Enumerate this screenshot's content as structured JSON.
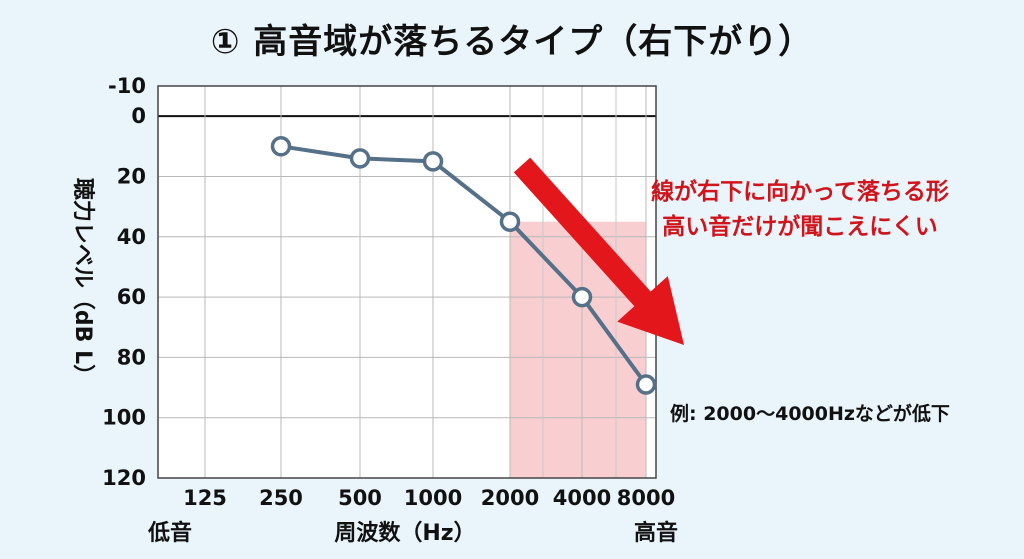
{
  "title": "① 高音域が落ちるタイプ（右下がり）",
  "chart_data": {
    "type": "line",
    "categories": [
      "125",
      "250",
      "500",
      "1000",
      "2000",
      "4000",
      "8000"
    ],
    "series": [
      {
        "values": [
          null,
          10,
          14,
          15,
          35,
          60,
          89
        ],
        "color": "#557189"
      }
    ],
    "xlabel": "周波数（Hz）",
    "x_low_label": "低音",
    "x_high_label": "高音",
    "ylabel": "聴力レベル（dB L）",
    "y_ticks": [
      -10,
      0,
      20,
      40,
      60,
      80,
      100,
      120
    ],
    "ylim": [
      -10,
      120
    ],
    "y_inverted": true,
    "grid": true,
    "highlight_range": [
      "2000",
      "8000"
    ],
    "highlight_color": "#f8c9cc",
    "annotation_lines": [
      "線が右下に向かって落ちる形",
      "高い音だけが聞こえにくい"
    ],
    "annotation_color": "#d0141b",
    "example_note": "例: 2000〜4000Hzなどが低下",
    "arrow_color": "#e3161c"
  }
}
